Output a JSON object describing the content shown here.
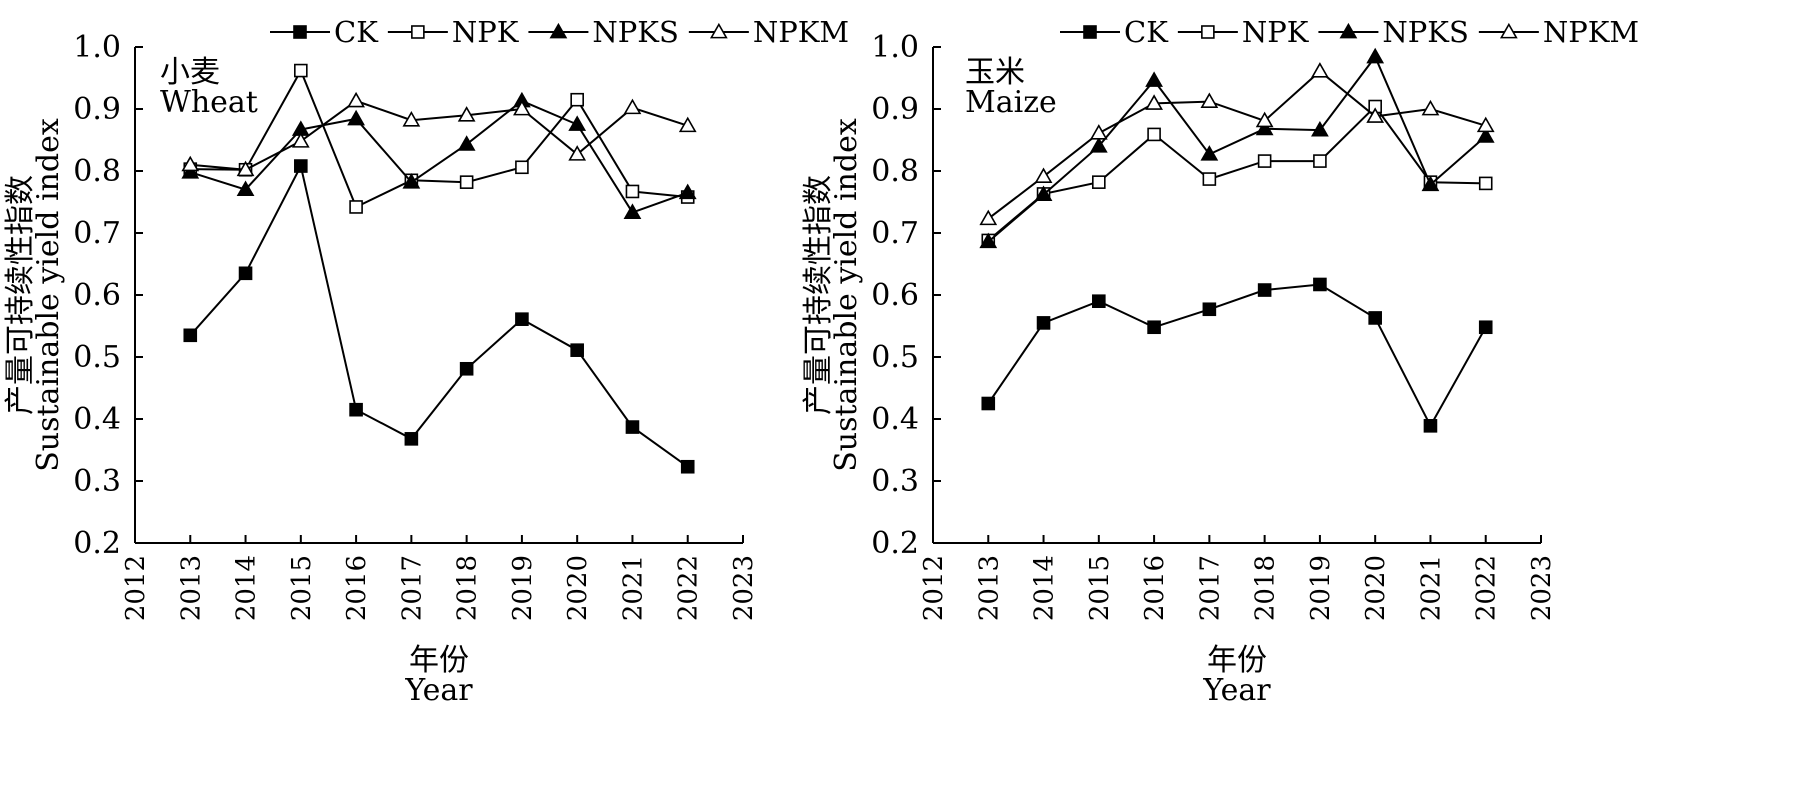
{
  "chart_data": [
    {
      "type": "line",
      "panel_label_cn": "小麦",
      "panel_label_en": "Wheat",
      "xlabel_cn": "年份",
      "xlabel_en": "Year",
      "ylabel_cn": "产量可持续性指数",
      "ylabel_en": "Sustainable yield index",
      "xlim": [
        2012,
        2023
      ],
      "xticks": [
        "2012",
        "2013",
        "2014",
        "2015",
        "2016",
        "2017",
        "2018",
        "2019",
        "2020",
        "2021",
        "2022",
        "2023"
      ],
      "ylim": [
        0.2,
        1.0
      ],
      "yticks": [
        "0.2",
        "0.3",
        "0.4",
        "0.5",
        "0.6",
        "0.7",
        "0.8",
        "0.9",
        "1.0"
      ],
      "x": [
        2013,
        2014,
        2015,
        2016,
        2017,
        2018,
        2019,
        2020,
        2021,
        2022
      ],
      "series": [
        {
          "name": "CK",
          "marker": "square-filled",
          "values": [
            0.535,
            0.635,
            0.808,
            0.415,
            0.368,
            0.481,
            0.561,
            0.511,
            0.387,
            0.323
          ]
        },
        {
          "name": "NPK",
          "marker": "square-open",
          "values": [
            0.803,
            0.802,
            0.962,
            0.742,
            0.785,
            0.782,
            0.806,
            0.915,
            0.767,
            0.758
          ]
        },
        {
          "name": "NPKS",
          "marker": "triangle-filled",
          "values": [
            0.798,
            0.77,
            0.867,
            0.884,
            0.782,
            0.843,
            0.913,
            0.875,
            0.733,
            0.765
          ]
        },
        {
          "name": "NPKM",
          "marker": "triangle-open",
          "values": [
            0.81,
            0.802,
            0.848,
            0.913,
            0.882,
            0.89,
            0.9,
            0.827,
            0.902,
            0.873
          ]
        }
      ]
    },
    {
      "type": "line",
      "panel_label_cn": "玉米",
      "panel_label_en": "Maize",
      "xlabel_cn": "年份",
      "xlabel_en": "Year",
      "ylabel_cn": "产量可持续性指数",
      "ylabel_en": "Sustainable yield index",
      "xlim": [
        2012,
        2023
      ],
      "xticks": [
        "2012",
        "2013",
        "2014",
        "2015",
        "2016",
        "2017",
        "2018",
        "2019",
        "2020",
        "2021",
        "2022",
        "2023"
      ],
      "ylim": [
        0.2,
        1.0
      ],
      "yticks": [
        "0.2",
        "0.3",
        "0.4",
        "0.5",
        "0.6",
        "0.7",
        "0.8",
        "0.9",
        "1.0"
      ],
      "x": [
        2013,
        2014,
        2015,
        2016,
        2017,
        2018,
        2019,
        2020,
        2021,
        2022
      ],
      "series": [
        {
          "name": "CK",
          "marker": "square-filled",
          "values": [
            0.425,
            0.555,
            0.59,
            0.548,
            0.577,
            0.608,
            0.617,
            0.563,
            0.389,
            0.548
          ]
        },
        {
          "name": "NPK",
          "marker": "square-open",
          "values": [
            0.688,
            0.763,
            0.782,
            0.859,
            0.787,
            0.816,
            0.816,
            0.904,
            0.782,
            0.78
          ]
        },
        {
          "name": "NPKS",
          "marker": "triangle-filled",
          "values": [
            0.686,
            0.762,
            0.84,
            0.946,
            0.827,
            0.868,
            0.866,
            0.984,
            0.778,
            0.856
          ]
        },
        {
          "name": "NPKM",
          "marker": "triangle-open",
          "values": [
            0.723,
            0.791,
            0.861,
            0.909,
            0.912,
            0.881,
            0.961,
            0.888,
            0.9,
            0.873
          ]
        }
      ]
    }
  ]
}
